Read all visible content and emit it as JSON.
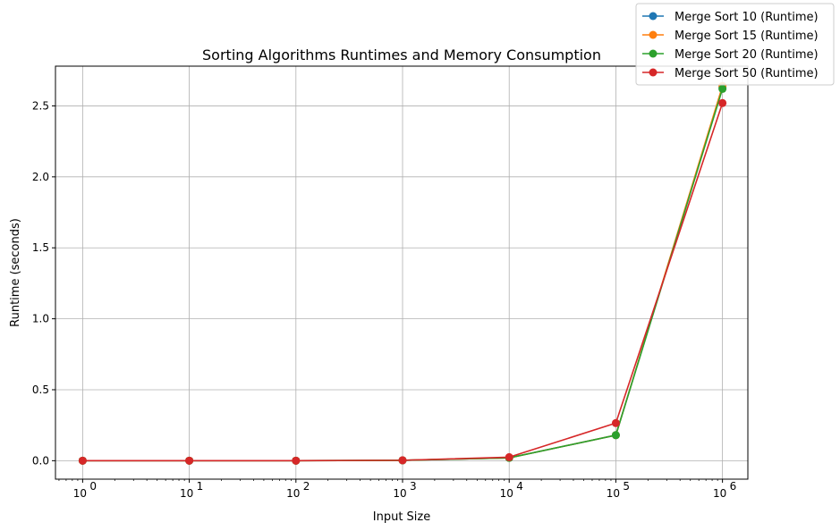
{
  "chart_data": {
    "type": "line",
    "title": "Sorting Algorithms Runtimes and Memory Consumption",
    "xlabel": "Input Size",
    "ylabel": "Runtime (seconds)",
    "x_scale": "log",
    "x_tick_labels": [
      "10",
      "10",
      "10",
      "10",
      "10",
      "10",
      "10"
    ],
    "x_tick_exponents": [
      "0",
      "1",
      "2",
      "3",
      "4",
      "5",
      "6"
    ],
    "y_ticks": [
      "0.0",
      "0.5",
      "1.0",
      "1.5",
      "2.0",
      "2.5"
    ],
    "ylim": [
      -0.13,
      2.78
    ],
    "grid": true,
    "legend_position": "top-right",
    "x": [
      1,
      10,
      100,
      1000,
      10000,
      100000,
      1000000
    ],
    "series": [
      {
        "name": "Merge Sort 10 (Runtime)",
        "color": "#1f77b4",
        "values": [
          0.0,
          0.0,
          0.0003,
          0.0025,
          0.02,
          0.18,
          2.63
        ]
      },
      {
        "name": "Merge Sort 15 (Runtime)",
        "color": "#ff7f0e",
        "values": [
          0.0,
          0.0,
          0.0003,
          0.0025,
          0.02,
          0.18,
          2.64
        ]
      },
      {
        "name": "Merge Sort 20 (Runtime)",
        "color": "#2ca02c",
        "values": [
          0.0,
          0.0,
          0.0003,
          0.0025,
          0.02,
          0.18,
          2.62
        ]
      },
      {
        "name": "Merge Sort 50 (Runtime)",
        "color": "#d62728",
        "values": [
          0.0,
          0.0,
          0.0003,
          0.003,
          0.025,
          0.265,
          2.52
        ]
      }
    ]
  }
}
